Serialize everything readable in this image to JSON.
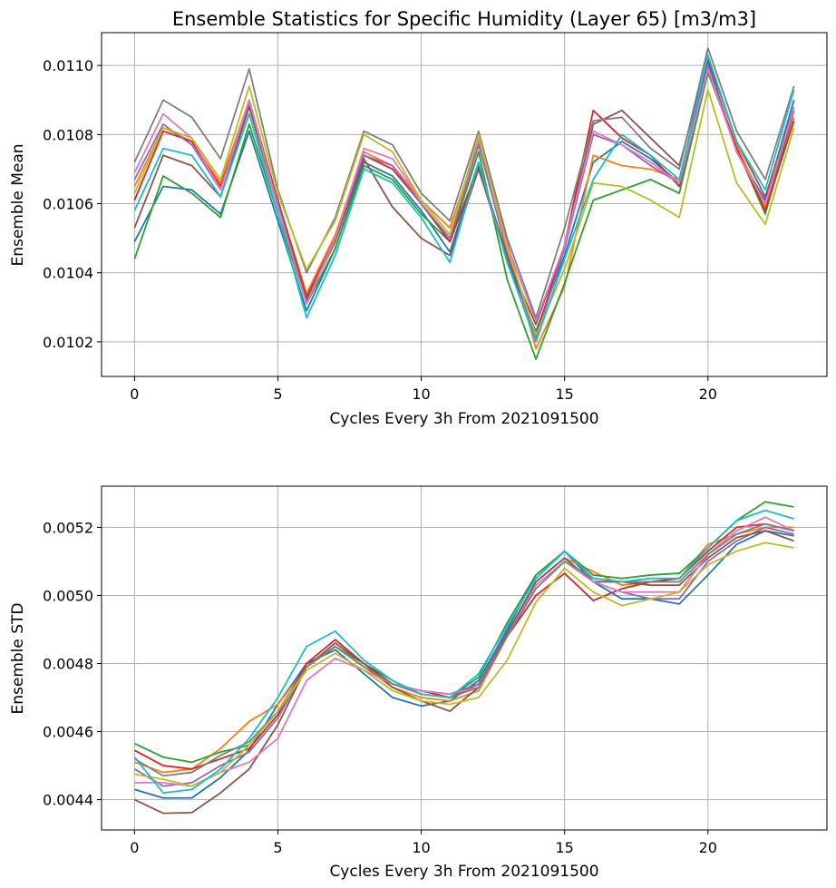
{
  "chart_data": [
    {
      "type": "line",
      "title": "Ensemble Statistics for Specific Humidity (Layer 65) [m3/m3]",
      "xlabel": "Cycles Every 3h From 2021091500",
      "ylabel": "Ensemble Mean",
      "xlim": [
        -1.15,
        24.15
      ],
      "ylim": [
        0.0101,
        0.011095
      ],
      "xticks": [
        0,
        5,
        10,
        15,
        20
      ],
      "xtick_labels": [
        "0",
        "5",
        "10",
        "15",
        "20"
      ],
      "yticks": [
        0.0102,
        0.0104,
        0.0106,
        0.0108,
        0.011
      ],
      "ytick_labels": [
        "0.0102",
        "0.0104",
        "0.0106",
        "0.0108",
        "0.0110"
      ],
      "grid": true,
      "x": [
        0,
        1,
        2,
        3,
        4,
        5,
        6,
        7,
        8,
        9,
        10,
        11,
        12,
        13,
        14,
        15,
        16,
        17,
        18,
        19,
        20,
        21,
        22,
        23
      ],
      "series": [
        {
          "color": "#1f77b4",
          "values": [
            0.01049,
            0.01065,
            0.01064,
            0.01057,
            0.01081,
            0.01055,
            0.01029,
            0.01047,
            0.01072,
            0.01068,
            0.01058,
            0.01046,
            0.01072,
            0.01043,
            0.01023,
            0.01045,
            0.01072,
            0.01078,
            0.01073,
            0.01066,
            0.01101,
            0.01075,
            0.01061,
            0.0109
          ]
        },
        {
          "color": "#ff7f0e",
          "values": [
            0.01065,
            0.01082,
            0.01078,
            0.01066,
            0.0109,
            0.01061,
            0.01034,
            0.01051,
            0.01075,
            0.01071,
            0.01061,
            0.01053,
            0.01078,
            0.01049,
            0.01018,
            0.01036,
            0.01074,
            0.01071,
            0.0107,
            0.01067,
            0.01098,
            0.01077,
            0.01059,
            0.01085
          ]
        },
        {
          "color": "#2ca02c",
          "values": [
            0.01044,
            0.01068,
            0.01063,
            0.01056,
            0.01083,
            0.01057,
            0.01031,
            0.01047,
            0.01071,
            0.01067,
            0.01057,
            0.01049,
            0.01075,
            0.01038,
            0.01015,
            0.01037,
            0.01061,
            0.01064,
            0.01067,
            0.01063,
            0.01098,
            0.01076,
            0.01057,
            0.01087
          ]
        },
        {
          "color": "#d62728",
          "values": [
            0.01061,
            0.01081,
            0.01078,
            0.01065,
            0.01089,
            0.01061,
            0.01033,
            0.0105,
            0.01074,
            0.0107,
            0.0106,
            0.01049,
            0.01071,
            0.01045,
            0.01022,
            0.01048,
            0.01087,
            0.01079,
            0.01074,
            0.01065,
            0.011,
            0.01076,
            0.01058,
            0.01084
          ]
        },
        {
          "color": "#9467bd",
          "values": [
            0.01067,
            0.01083,
            0.01077,
            0.01064,
            0.01089,
            0.0106,
            0.01032,
            0.0105,
            0.01074,
            0.01071,
            0.0106,
            0.0105,
            0.01077,
            0.01046,
            0.01021,
            0.01047,
            0.0108,
            0.01077,
            0.01071,
            0.01066,
            0.011,
            0.01075,
            0.0106,
            0.01087
          ]
        },
        {
          "color": "#8c564b",
          "values": [
            0.01053,
            0.01074,
            0.01071,
            0.01062,
            0.01088,
            0.01059,
            0.01032,
            0.01049,
            0.01073,
            0.01059,
            0.0105,
            0.01045,
            0.0107,
            0.01044,
            0.01025,
            0.01048,
            0.01083,
            0.01087,
            0.01079,
            0.01071,
            0.01102,
            0.01078,
            0.01062,
            0.01088
          ]
        },
        {
          "color": "#e377c2",
          "values": [
            0.01069,
            0.01086,
            0.01079,
            0.01064,
            0.0109,
            0.01059,
            0.01031,
            0.0105,
            0.01076,
            0.01073,
            0.01061,
            0.01051,
            0.01079,
            0.01048,
            0.01026,
            0.01048,
            0.01081,
            0.01077,
            0.01072,
            0.01066,
            0.01099,
            0.01075,
            0.0106,
            0.01088
          ]
        },
        {
          "color": "#7f7f7f",
          "values": [
            0.01072,
            0.0109,
            0.01085,
            0.01073,
            0.01099,
            0.01064,
            0.0104,
            0.01056,
            0.01081,
            0.01077,
            0.01063,
            0.01055,
            0.01081,
            0.0105,
            0.01027,
            0.01053,
            0.01084,
            0.01085,
            0.01076,
            0.0107,
            0.01105,
            0.01081,
            0.01067,
            0.01094
          ]
        },
        {
          "color": "#bcbd22",
          "values": [
            0.01063,
            0.01082,
            0.01079,
            0.01067,
            0.01094,
            0.01063,
            0.01041,
            0.01055,
            0.0108,
            0.01075,
            0.01061,
            0.01051,
            0.0108,
            0.01047,
            0.01022,
            0.01041,
            0.01066,
            0.01065,
            0.01061,
            0.01056,
            0.01093,
            0.01066,
            0.01054,
            0.01082
          ]
        },
        {
          "color": "#17becf",
          "values": [
            0.01058,
            0.01076,
            0.01074,
            0.01062,
            0.01086,
            0.01057,
            0.01027,
            0.01045,
            0.0107,
            0.01066,
            0.01056,
            0.01043,
            0.01072,
            0.01043,
            0.0102,
            0.01044,
            0.01067,
            0.0108,
            0.01074,
            0.01067,
            0.01103,
            0.01078,
            0.01064,
            0.01093
          ]
        }
      ]
    },
    {
      "type": "line",
      "title": "",
      "xlabel": "Cycles Every 3h From 2021091500",
      "ylabel": "Ensemble STD",
      "xlim": [
        -1.15,
        24.15
      ],
      "ylim": [
        0.004311,
        0.005321
      ],
      "xticks": [
        0,
        5,
        10,
        15,
        20
      ],
      "xtick_labels": [
        "0",
        "5",
        "10",
        "15",
        "20"
      ],
      "yticks": [
        0.0044,
        0.0046,
        0.0048,
        0.005,
        0.0052
      ],
      "ytick_labels": [
        "0.0044",
        "0.0046",
        "0.0048",
        "0.0050",
        "0.0052"
      ],
      "grid": true,
      "x": [
        0,
        1,
        2,
        3,
        4,
        5,
        6,
        7,
        8,
        9,
        10,
        11,
        12,
        13,
        14,
        15,
        16,
        17,
        18,
        19,
        20,
        21,
        22,
        23
      ],
      "series": [
        {
          "color": "#1f77b4",
          "values": [
            0.00443,
            0.004405,
            0.004405,
            0.004465,
            0.004545,
            0.00468,
            0.0048,
            0.00484,
            0.00477,
            0.0047,
            0.004675,
            0.00469,
            0.00475,
            0.0049,
            0.00506,
            0.00513,
            0.00504,
            0.00499,
            0.00499,
            0.004975,
            0.00506,
            0.00515,
            0.00519,
            0.005175
          ]
        },
        {
          "color": "#ff7f0e",
          "values": [
            0.00451,
            0.00448,
            0.00449,
            0.00455,
            0.00463,
            0.00468,
            0.00479,
            0.00485,
            0.00479,
            0.00473,
            0.0047,
            0.00469,
            0.00472,
            0.00488,
            0.00504,
            0.00511,
            0.00507,
            0.00503,
            0.00504,
            0.00505,
            0.00515,
            0.00518,
            0.0052,
            0.0052
          ]
        },
        {
          "color": "#2ca02c",
          "values": [
            0.004565,
            0.004525,
            0.00451,
            0.00454,
            0.00456,
            0.00466,
            0.00479,
            0.00485,
            0.0048,
            0.00475,
            0.00471,
            0.0047,
            0.00476,
            0.00492,
            0.00506,
            0.00513,
            0.00506,
            0.00505,
            0.00506,
            0.005065,
            0.00514,
            0.00522,
            0.005275,
            0.00526
          ]
        },
        {
          "color": "#d62728",
          "values": [
            0.004545,
            0.0045,
            0.00449,
            0.00452,
            0.00455,
            0.00465,
            0.0048,
            0.00487,
            0.0048,
            0.00474,
            0.00472,
            0.0047,
            0.00474,
            0.00488,
            0.005,
            0.005065,
            0.004985,
            0.00502,
            0.00504,
            0.00505,
            0.00513,
            0.0052,
            0.00521,
            0.00519
          ]
        },
        {
          "color": "#9467bd",
          "values": [
            0.00449,
            0.00444,
            0.00445,
            0.0045,
            0.00454,
            0.00464,
            0.00479,
            0.00485,
            0.00479,
            0.00474,
            0.00472,
            0.00471,
            0.00474,
            0.00489,
            0.00504,
            0.00511,
            0.00504,
            0.00501,
            0.00499,
            0.00499,
            0.0051,
            0.00516,
            0.0052,
            0.00518
          ]
        },
        {
          "color": "#8c564b",
          "values": [
            0.0044,
            0.00436,
            0.004362,
            0.00442,
            0.00449,
            0.00462,
            0.00479,
            0.00486,
            0.0048,
            0.00473,
            0.00469,
            0.00466,
            0.00473,
            0.00489,
            0.00504,
            0.00511,
            0.00504,
            0.00504,
            0.00503,
            0.00503,
            0.00511,
            0.00517,
            0.00519,
            0.00516
          ]
        },
        {
          "color": "#e377c2",
          "values": [
            0.00445,
            0.00445,
            0.00444,
            0.00448,
            0.00451,
            0.00458,
            0.00475,
            0.004815,
            0.00478,
            0.00474,
            0.00472,
            0.00471,
            0.00473,
            0.00488,
            0.00503,
            0.0051,
            0.00504,
            0.00501,
            0.00501,
            0.00501,
            0.00512,
            0.00519,
            0.00523,
            0.00519
          ]
        },
        {
          "color": "#7f7f7f",
          "values": [
            0.00452,
            0.00447,
            0.00448,
            0.00453,
            0.00457,
            0.00466,
            0.00479,
            0.00485,
            0.00479,
            0.00474,
            0.00471,
            0.0047,
            0.00473,
            0.00488,
            0.00502,
            0.0051,
            0.00505,
            0.00504,
            0.00504,
            0.00504,
            0.00512,
            0.00518,
            0.00521,
            0.00519
          ]
        },
        {
          "color": "#bcbd22",
          "values": [
            0.004475,
            0.00446,
            0.00444,
            0.00448,
            0.00456,
            0.00466,
            0.00478,
            0.00483,
            0.00478,
            0.00472,
            0.00469,
            0.00468,
            0.0047,
            0.00481,
            0.00498,
            0.00508,
            0.00501,
            0.00497,
            0.00499,
            0.00501,
            0.00509,
            0.00513,
            0.005155,
            0.00514
          ]
        },
        {
          "color": "#17becf",
          "values": [
            0.004525,
            0.00442,
            0.00443,
            0.00449,
            0.00458,
            0.0047,
            0.00485,
            0.004895,
            0.00481,
            0.00475,
            0.00471,
            0.0047,
            0.00477,
            0.00491,
            0.00505,
            0.00513,
            0.00505,
            0.00504,
            0.00505,
            0.00505,
            0.00514,
            0.00522,
            0.00525,
            0.005225
          ]
        }
      ]
    }
  ]
}
